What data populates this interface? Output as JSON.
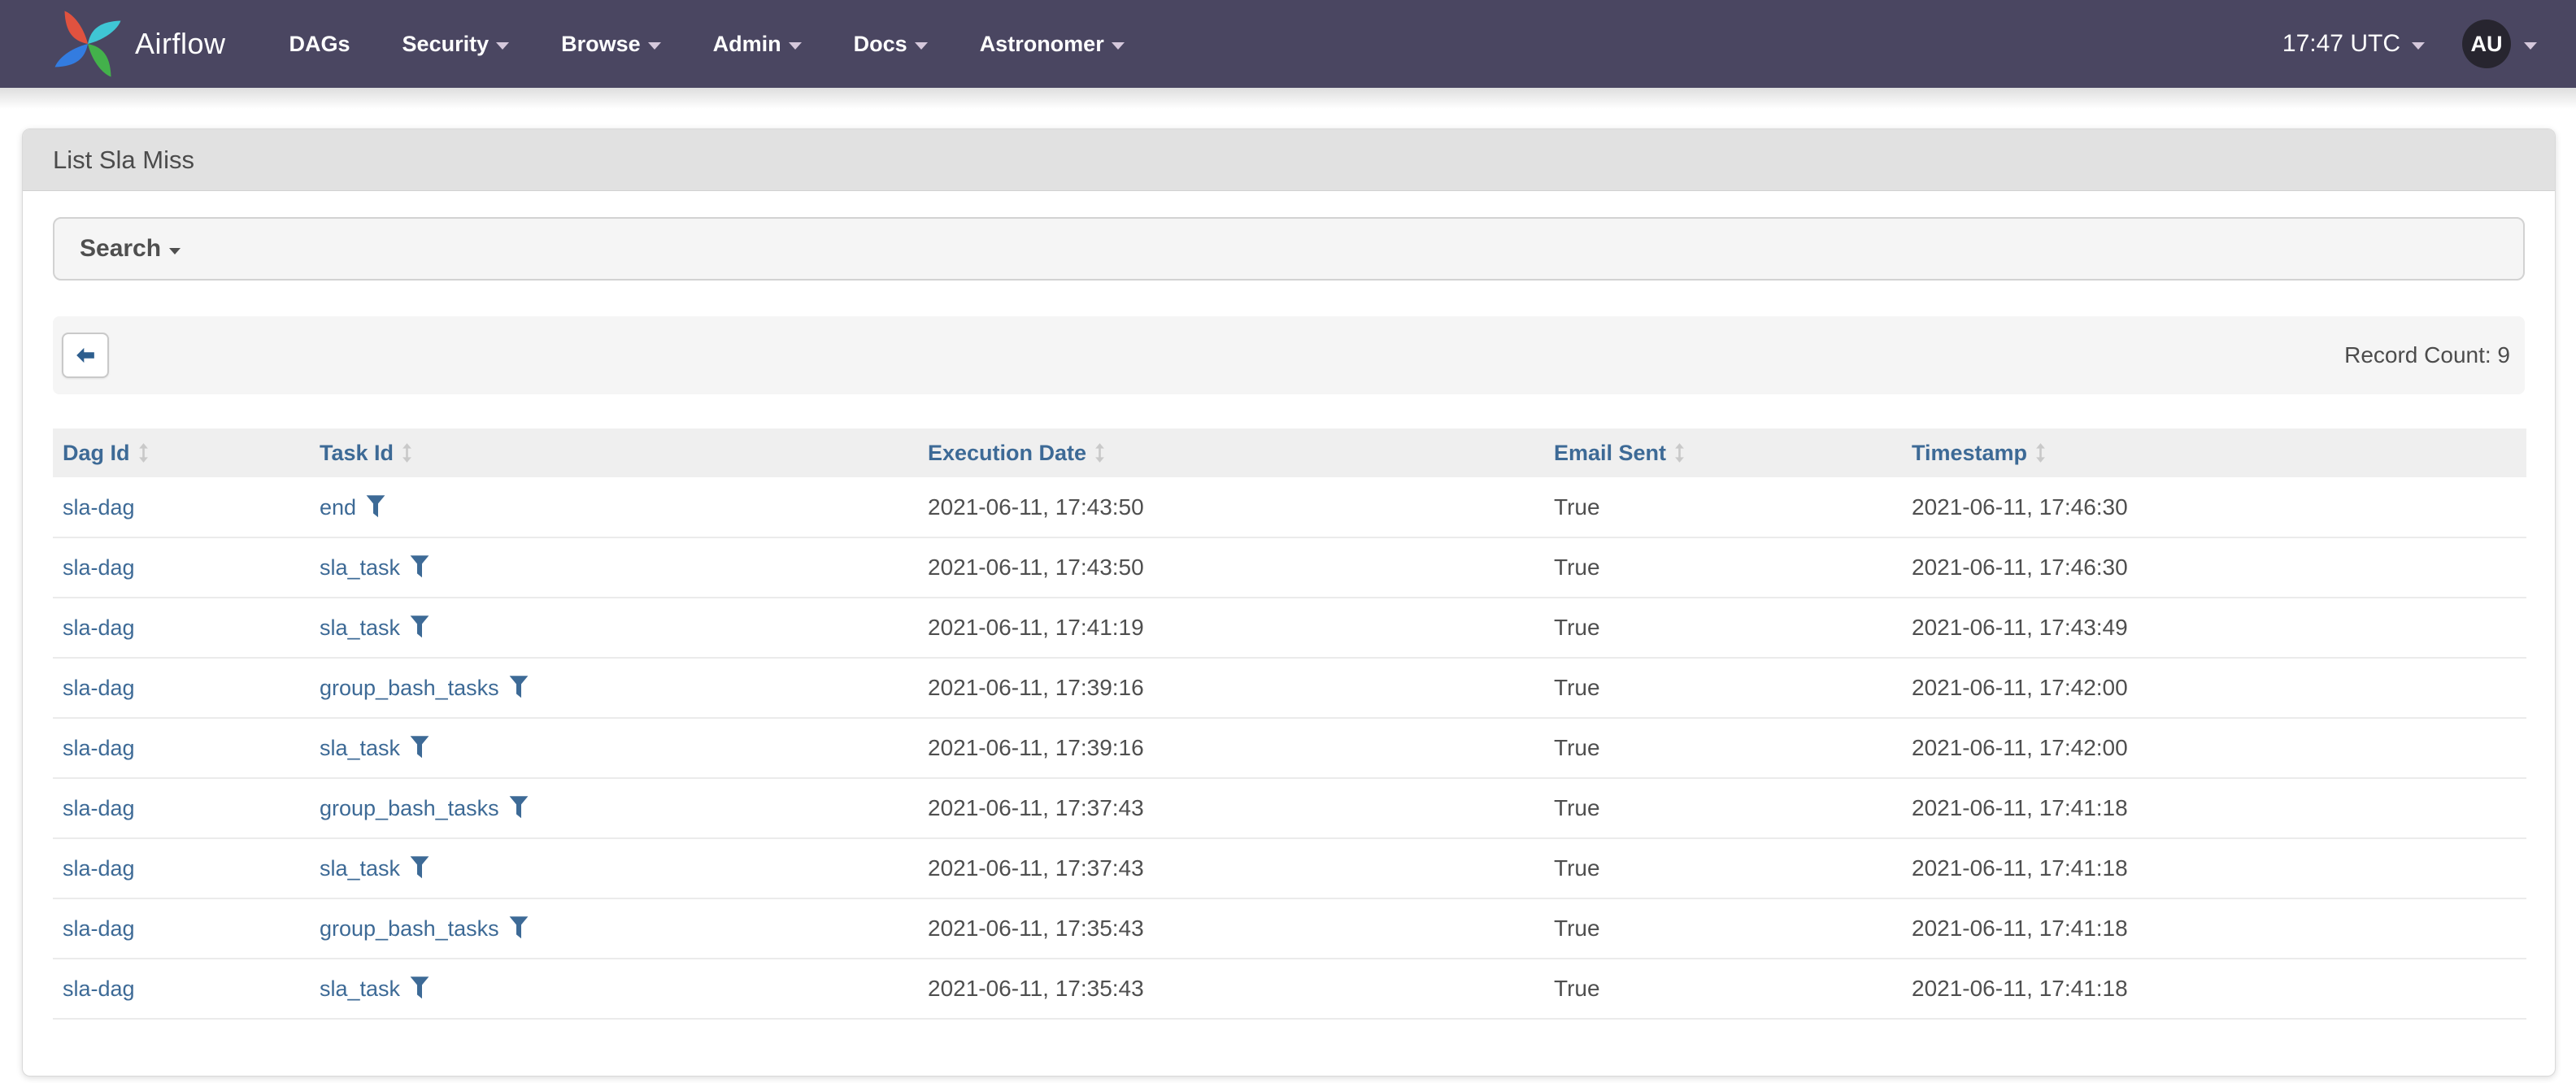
{
  "navbar": {
    "brand": "Airflow",
    "logo_icon": "airflow-pinwheel-logo",
    "items": [
      {
        "label": "DAGs",
        "caret": false
      },
      {
        "label": "Security",
        "caret": true
      },
      {
        "label": "Browse",
        "caret": true
      },
      {
        "label": "Admin",
        "caret": true
      },
      {
        "label": "Docs",
        "caret": true
      },
      {
        "label": "Astronomer",
        "caret": true
      }
    ],
    "clock": "17:47 UTC",
    "avatar": "AU"
  },
  "page": {
    "title": "List Sla Miss"
  },
  "search": {
    "label": "Search"
  },
  "toolbar": {
    "back_icon": "back-arrow-icon",
    "record_count": "Record Count: 9"
  },
  "table": {
    "columns": [
      "Dag Id",
      "Task Id",
      "Execution Date",
      "Email Sent",
      "Timestamp"
    ],
    "sort_icon": "sort-up-down-icon",
    "filter_icon": "filter-funnel-icon",
    "rows": [
      {
        "dag_id": "sla-dag",
        "task_id": "end",
        "execution_date": "2021-06-11, 17:43:50",
        "email_sent": "True",
        "timestamp": "2021-06-11, 17:46:30"
      },
      {
        "dag_id": "sla-dag",
        "task_id": "sla_task",
        "execution_date": "2021-06-11, 17:43:50",
        "email_sent": "True",
        "timestamp": "2021-06-11, 17:46:30"
      },
      {
        "dag_id": "sla-dag",
        "task_id": "sla_task",
        "execution_date": "2021-06-11, 17:41:19",
        "email_sent": "True",
        "timestamp": "2021-06-11, 17:43:49"
      },
      {
        "dag_id": "sla-dag",
        "task_id": "group_bash_tasks",
        "execution_date": "2021-06-11, 17:39:16",
        "email_sent": "True",
        "timestamp": "2021-06-11, 17:42:00"
      },
      {
        "dag_id": "sla-dag",
        "task_id": "sla_task",
        "execution_date": "2021-06-11, 17:39:16",
        "email_sent": "True",
        "timestamp": "2021-06-11, 17:42:00"
      },
      {
        "dag_id": "sla-dag",
        "task_id": "group_bash_tasks",
        "execution_date": "2021-06-11, 17:37:43",
        "email_sent": "True",
        "timestamp": "2021-06-11, 17:41:18"
      },
      {
        "dag_id": "sla-dag",
        "task_id": "sla_task",
        "execution_date": "2021-06-11, 17:37:43",
        "email_sent": "True",
        "timestamp": "2021-06-11, 17:41:18"
      },
      {
        "dag_id": "sla-dag",
        "task_id": "group_bash_tasks",
        "execution_date": "2021-06-11, 17:35:43",
        "email_sent": "True",
        "timestamp": "2021-06-11, 17:41:18"
      },
      {
        "dag_id": "sla-dag",
        "task_id": "sla_task",
        "execution_date": "2021-06-11, 17:35:43",
        "email_sent": "True",
        "timestamp": "2021-06-11, 17:41:18"
      }
    ]
  },
  "colors": {
    "navbar_bg": "#4a4661",
    "navbar_caret": "#d5c8dc",
    "avatar_bg": "#27252f",
    "link_blue": "#3d6a96",
    "header_bg": "#efefef",
    "card_header_bg": "#e1e1e1",
    "panel_bg": "#f5f5f5",
    "body_text": "#4f4f4f",
    "logo_red": "#e0523f",
    "logo_cyan": "#3fc6d4",
    "logo_green": "#43b14b",
    "logo_blue": "#337ce0"
  }
}
